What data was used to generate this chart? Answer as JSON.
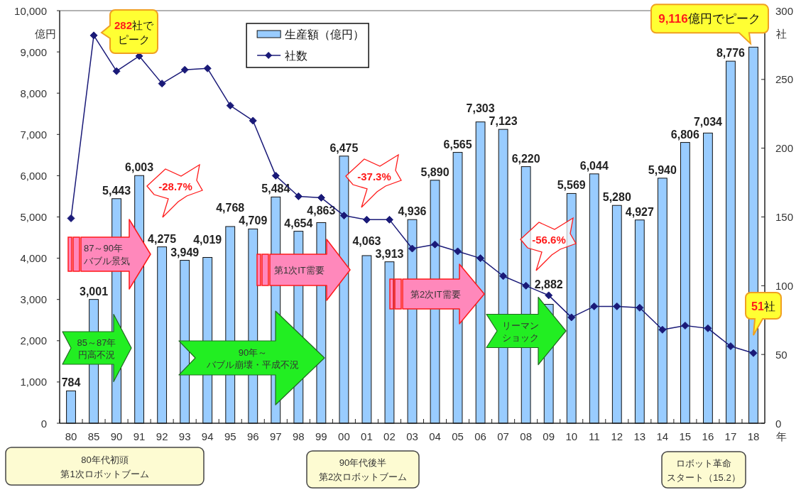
{
  "chart_data": {
    "type": "bar",
    "xlabel": "年",
    "ylabel": "億円",
    "y2label": "社",
    "categories": [
      "80",
      "85",
      "90",
      "91",
      "92",
      "93",
      "94",
      "95",
      "96",
      "97",
      "98",
      "99",
      "00",
      "01",
      "02",
      "03",
      "04",
      "05",
      "06",
      "07",
      "08",
      "09",
      "10",
      "11",
      "12",
      "13",
      "14",
      "15",
      "16",
      "17",
      "18"
    ],
    "series": [
      {
        "name": "生産額（億円）",
        "color": "#99ccff",
        "values": [
          784,
          3001,
          5443,
          6003,
          4275,
          3949,
          4019,
          4768,
          4709,
          5484,
          4654,
          4863,
          6475,
          4063,
          3913,
          4936,
          5890,
          6565,
          7303,
          7123,
          6220,
          2882,
          5569,
          6044,
          5280,
          4927,
          5940,
          6806,
          7034,
          8776,
          9116
        ],
        "value_labels": [
          "784",
          "3,001",
          "5,443",
          "6,003",
          "4,275",
          "3,949",
          "4,019",
          "4,768",
          "4,709",
          "5,484",
          "4,654",
          "4,863",
          "6,475",
          "4,063",
          "3,913",
          "4,936",
          "5,890",
          "6,565",
          "7,303",
          "7,123",
          "6,220",
          "2,882",
          "5,569",
          "6,044",
          "5,280",
          "4,927",
          "5,940",
          "6,806",
          "7,034",
          "8,776",
          null
        ]
      },
      {
        "name": "社数",
        "type": "line",
        "axis": "y2",
        "color": "#1a1a78",
        "values": [
          149,
          282,
          256,
          267,
          247,
          257,
          258,
          231,
          220,
          180,
          165,
          164,
          151,
          148,
          148,
          127,
          130,
          125,
          120,
          107,
          100,
          93,
          77,
          85,
          85,
          84,
          68,
          71,
          69,
          56,
          51
        ]
      }
    ],
    "ylim": [
      0,
      10000
    ],
    "yticks": [
      0,
      {
        "value": 1000,
        "label": "1,000"
      },
      {
        "value": 2000,
        "label": "2,000"
      },
      {
        "value": 3000,
        "label": "3,000"
      },
      {
        "value": 4000,
        "label": "4,000"
      },
      {
        "value": 5000,
        "label": "5,000"
      },
      {
        "value": 6000,
        "label": "6,000"
      },
      {
        "value": 7000,
        "label": "7,000"
      },
      {
        "value": 8000,
        "label": "8,000"
      },
      {
        "value": 9000,
        "label": "9,000"
      },
      {
        "value": 10000,
        "label": "10,000"
      }
    ],
    "y2lim": [
      0,
      300
    ],
    "y2ticks": [
      0,
      50,
      100,
      150,
      200,
      250,
      300
    ],
    "grid": false,
    "legend": "top",
    "marker": "diamond",
    "annotations": [
      "282社でピーク",
      {
        "text": "9,116億円でピーク",
        "x": "18",
        "y": 9116
      },
      "-28.7%",
      "-37.3%",
      "-56.6%",
      "87～90年バブル景気",
      "第1次IT需要",
      "第2次IT需要",
      "85～87年円高不況",
      "90年～バブル崩壊・平成不況",
      "リーマンショック",
      "51社",
      "80年代初頭第1次ロボットブーム",
      "90年代後半第2次ロボットブーム",
      "ロボット革命スタート（15.2）"
    ]
  }
}
